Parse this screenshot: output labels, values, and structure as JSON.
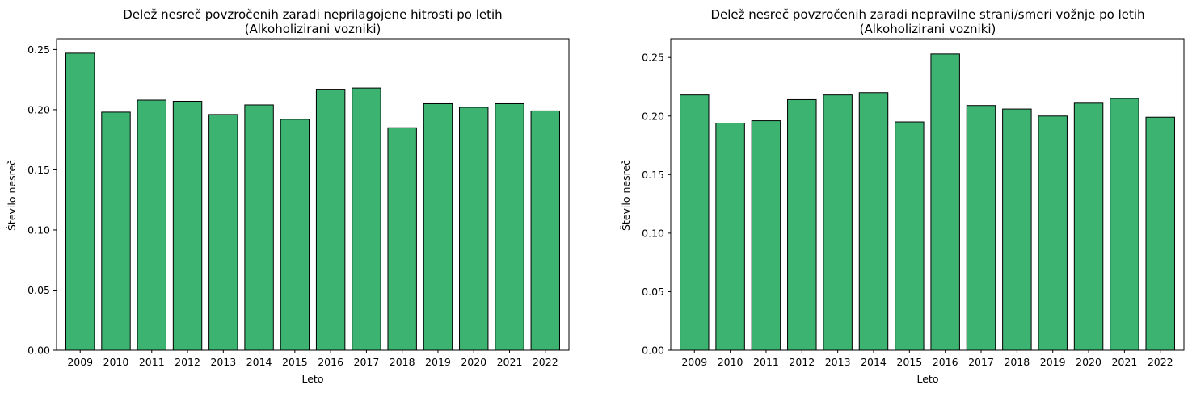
{
  "colors": {
    "bar": "#3cb371",
    "edge": "#000000",
    "background": "#ffffff"
  },
  "chart_data": [
    {
      "type": "bar",
      "title": "Delež nesreč povzročenih zaradi neprilagojene hitrosti po letih",
      "subtitle": "(Alkoholizirani vozniki)",
      "xlabel": "Leto",
      "ylabel": "Število nesreč",
      "categories": [
        "2009",
        "2010",
        "2011",
        "2012",
        "2013",
        "2014",
        "2015",
        "2016",
        "2017",
        "2018",
        "2019",
        "2020",
        "2021",
        "2022"
      ],
      "values": [
        0.247,
        0.198,
        0.208,
        0.207,
        0.196,
        0.204,
        0.192,
        0.217,
        0.218,
        0.185,
        0.205,
        0.202,
        0.205,
        0.199
      ],
      "ylim": [
        0,
        0.259
      ],
      "yticks": [
        "0.00",
        "0.05",
        "0.10",
        "0.15",
        "0.20",
        "0.25"
      ],
      "grid": false
    },
    {
      "type": "bar",
      "title": "Delež nesreč povzročenih zaradi nepravilne strani/smeri vožnje po letih",
      "subtitle": "(Alkoholizirani vozniki)",
      "xlabel": "Leto",
      "ylabel": "Število nesreč",
      "categories": [
        "2009",
        "2010",
        "2011",
        "2012",
        "2013",
        "2014",
        "2015",
        "2016",
        "2017",
        "2018",
        "2019",
        "2020",
        "2021",
        "2022"
      ],
      "values": [
        0.218,
        0.194,
        0.196,
        0.214,
        0.218,
        0.22,
        0.195,
        0.253,
        0.209,
        0.206,
        0.2,
        0.211,
        0.215,
        0.199
      ],
      "ylim": [
        0,
        0.266
      ],
      "yticks": [
        "0.00",
        "0.05",
        "0.10",
        "0.15",
        "0.20",
        "0.25"
      ],
      "grid": false
    }
  ]
}
